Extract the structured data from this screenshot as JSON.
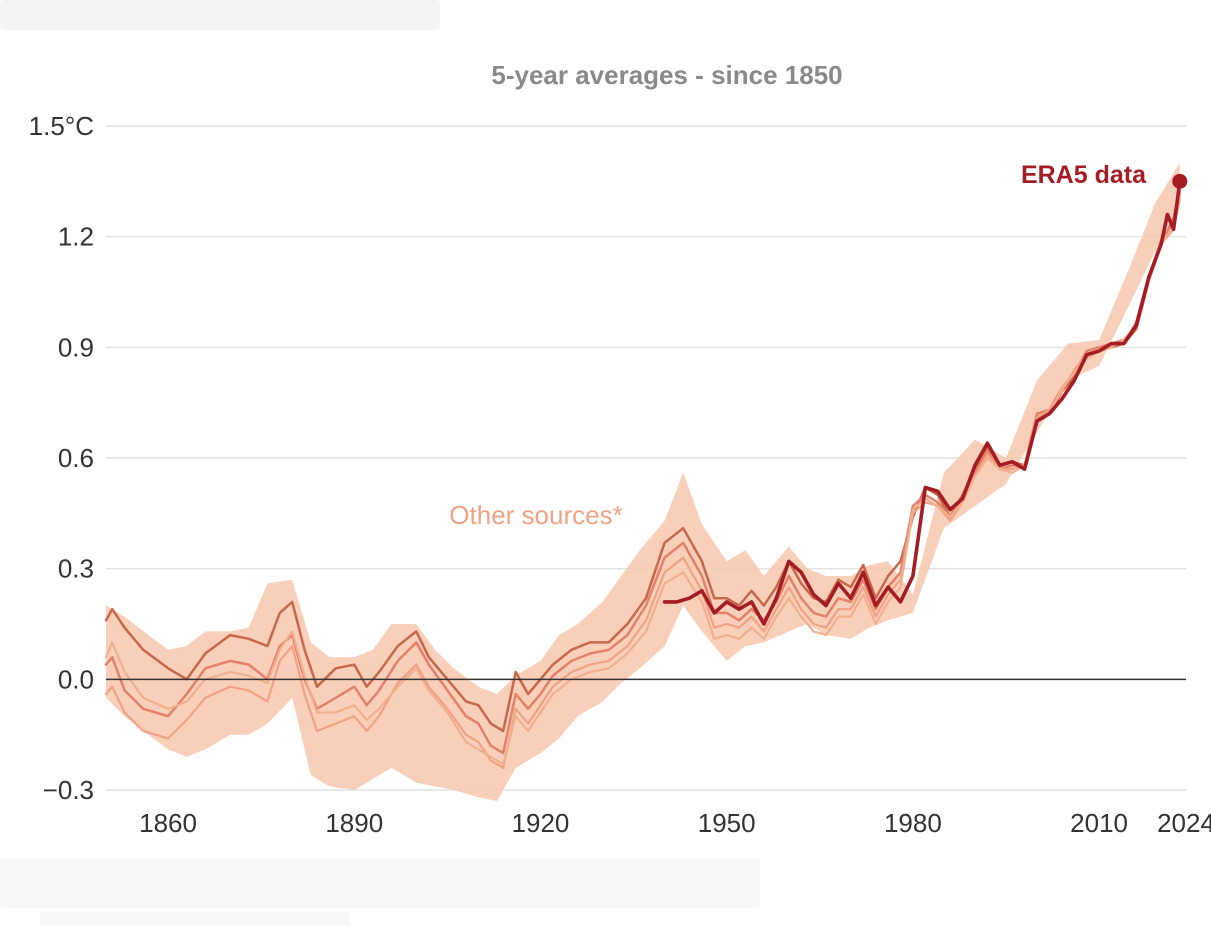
{
  "chart_data": {
    "type": "line",
    "title": "5-year averages - since 1850",
    "ylim": [
      -0.3,
      1.5
    ],
    "xlim": [
      1850,
      2024
    ],
    "yticks": [
      {
        "value": 1.5,
        "label": "1.5°C"
      },
      {
        "value": 1.2,
        "label": "1.2"
      },
      {
        "value": 0.9,
        "label": "0.9"
      },
      {
        "value": 0.6,
        "label": "0.6"
      },
      {
        "value": 0.3,
        "label": "0.3"
      },
      {
        "value": 0.0,
        "label": "0.0"
      },
      {
        "value": -0.3,
        "label": "−0.3"
      }
    ],
    "xticks": [
      {
        "value": 1860,
        "label": "1860"
      },
      {
        "value": 1890,
        "label": "1890"
      },
      {
        "value": 1920,
        "label": "1920"
      },
      {
        "value": 1950,
        "label": "1950"
      },
      {
        "value": 1980,
        "label": "1980"
      },
      {
        "value": 2010,
        "label": "2010"
      },
      {
        "value": 2024,
        "label": "2024"
      }
    ],
    "grid": true,
    "colors": {
      "era5": "#a61c24",
      "band": "#f7c7ad",
      "other_series": [
        "#c8684b",
        "#e5806a",
        "#f2a184",
        "#f0b08e"
      ],
      "zero_line": "#333333",
      "grid": "#e2e2e2"
    },
    "annotations": {
      "era5_label": "ERA5 data",
      "other_label": "Other sources*"
    },
    "band": {
      "x": [
        1850,
        1853,
        1856,
        1860,
        1863,
        1866,
        1870,
        1873,
        1876,
        1880,
        1883,
        1886,
        1890,
        1893,
        1896,
        1900,
        1903,
        1906,
        1910,
        1913,
        1916,
        1920,
        1923,
        1926,
        1930,
        1933,
        1936,
        1940,
        1943,
        1946,
        1950,
        1953,
        1956,
        1960,
        1963,
        1966,
        1970,
        1973,
        1976,
        1980,
        1985,
        1990,
        1995,
        2000,
        2005,
        2010,
        2015,
        2019,
        2023
      ],
      "upper": [
        0.2,
        0.17,
        0.13,
        0.08,
        0.09,
        0.13,
        0.13,
        0.14,
        0.26,
        0.27,
        0.1,
        0.06,
        0.06,
        0.08,
        0.15,
        0.15,
        0.08,
        0.03,
        -0.02,
        -0.04,
        0.01,
        0.05,
        0.12,
        0.15,
        0.21,
        0.28,
        0.35,
        0.43,
        0.56,
        0.42,
        0.32,
        0.35,
        0.28,
        0.36,
        0.3,
        0.28,
        0.28,
        0.31,
        0.32,
        0.23,
        0.56,
        0.65,
        0.6,
        0.81,
        0.91,
        0.92,
        1.12,
        1.29,
        1.4
      ],
      "lower": [
        -0.05,
        -0.1,
        -0.14,
        -0.19,
        -0.21,
        -0.19,
        -0.15,
        -0.15,
        -0.12,
        -0.05,
        -0.26,
        -0.29,
        -0.3,
        -0.27,
        -0.24,
        -0.28,
        -0.29,
        -0.3,
        -0.32,
        -0.33,
        -0.24,
        -0.2,
        -0.16,
        -0.1,
        -0.06,
        -0.01,
        0.03,
        0.09,
        0.2,
        0.13,
        0.05,
        0.09,
        0.1,
        0.13,
        0.15,
        0.12,
        0.11,
        0.14,
        0.16,
        0.18,
        0.41,
        0.47,
        0.53,
        0.67,
        0.81,
        0.85,
        1.02,
        1.16,
        1.29
      ]
    },
    "series": [
      {
        "x": [
          1850,
          1851,
          1853,
          1856,
          1860,
          1863,
          1866,
          1870,
          1873,
          1876,
          1878,
          1880,
          1882,
          1884,
          1887,
          1890,
          1892,
          1894,
          1897,
          1900,
          1902,
          1905,
          1908,
          1910,
          1912,
          1914,
          1916,
          1918,
          1920,
          1922,
          1925,
          1928,
          1931,
          1934,
          1937,
          1940,
          1943,
          1946,
          1948,
          1950,
          1952,
          1954,
          1956,
          1958,
          1960,
          1962,
          1964,
          1966,
          1968,
          1970,
          1972,
          1974,
          1976,
          1978,
          1980,
          1982,
          1984,
          1986,
          1988,
          1990,
          1992,
          1994,
          1996,
          1998,
          2000,
          2002,
          2004,
          2006,
          2008,
          2010,
          2012,
          2014,
          2016,
          2018,
          2020,
          2022,
          2023
        ],
        "y": [
          0.16,
          0.19,
          0.14,
          0.08,
          0.03,
          0.0,
          0.07,
          0.12,
          0.11,
          0.09,
          0.18,
          0.21,
          0.08,
          -0.02,
          0.03,
          0.04,
          -0.02,
          0.02,
          0.09,
          0.13,
          0.06,
          0.0,
          -0.06,
          -0.07,
          -0.12,
          -0.14,
          0.02,
          -0.04,
          0.0,
          0.04,
          0.08,
          0.1,
          0.1,
          0.15,
          0.22,
          0.37,
          0.41,
          0.32,
          0.22,
          0.22,
          0.2,
          0.24,
          0.2,
          0.25,
          0.32,
          0.26,
          0.22,
          0.21,
          0.27,
          0.25,
          0.31,
          0.22,
          0.28,
          0.32,
          0.44,
          0.52,
          0.5,
          0.44,
          0.5,
          0.57,
          0.63,
          0.58,
          0.59,
          0.58,
          0.71,
          0.72,
          0.78,
          0.82,
          0.88,
          0.89,
          0.9,
          0.91,
          0.95,
          1.08,
          1.18,
          1.25,
          1.33
        ]
      },
      {
        "x": [
          1850,
          1851,
          1853,
          1856,
          1860,
          1863,
          1866,
          1870,
          1873,
          1876,
          1878,
          1880,
          1882,
          1884,
          1887,
          1890,
          1892,
          1894,
          1897,
          1900,
          1902,
          1905,
          1908,
          1910,
          1912,
          1914,
          1916,
          1918,
          1920,
          1922,
          1925,
          1928,
          1931,
          1934,
          1937,
          1940,
          1943,
          1946,
          1948,
          1950,
          1952,
          1954,
          1956,
          1958,
          1960,
          1962,
          1964,
          1966,
          1968,
          1970,
          1972,
          1974,
          1976,
          1978,
          1980,
          1982,
          1984,
          1986,
          1988,
          1990,
          1992,
          1994,
          1996,
          1998,
          2000,
          2002,
          2004,
          2006,
          2008,
          2010,
          2012,
          2014,
          2016,
          2018,
          2020,
          2022,
          2023
        ],
        "y": [
          0.04,
          0.06,
          -0.03,
          -0.08,
          -0.1,
          -0.04,
          0.03,
          0.05,
          0.04,
          0.0,
          0.09,
          0.12,
          0.0,
          -0.08,
          -0.05,
          -0.02,
          -0.07,
          -0.03,
          0.05,
          0.1,
          0.04,
          -0.03,
          -0.1,
          -0.12,
          -0.18,
          -0.2,
          -0.04,
          -0.08,
          -0.04,
          0.01,
          0.05,
          0.07,
          0.08,
          0.12,
          0.2,
          0.33,
          0.37,
          0.28,
          0.18,
          0.18,
          0.16,
          0.19,
          0.16,
          0.21,
          0.28,
          0.22,
          0.18,
          0.17,
          0.22,
          0.21,
          0.27,
          0.19,
          0.25,
          0.29,
          0.47,
          0.5,
          0.48,
          0.44,
          0.49,
          0.56,
          0.62,
          0.57,
          0.58,
          0.58,
          0.72,
          0.73,
          0.79,
          0.83,
          0.89,
          0.9,
          0.91,
          0.92,
          0.96,
          1.09,
          1.19,
          1.24,
          1.32
        ]
      },
      {
        "x": [
          1850,
          1851,
          1853,
          1856,
          1860,
          1863,
          1866,
          1870,
          1873,
          1876,
          1878,
          1880,
          1882,
          1884,
          1887,
          1890,
          1892,
          1894,
          1897,
          1900,
          1902,
          1905,
          1908,
          1910,
          1912,
          1914,
          1916,
          1918,
          1920,
          1922,
          1925,
          1928,
          1931,
          1934,
          1937,
          1940,
          1943,
          1946,
          1948,
          1950,
          1952,
          1954,
          1956,
          1958,
          1960,
          1962,
          1964,
          1966,
          1968,
          1970,
          1972,
          1974,
          1976,
          1978,
          1980,
          1982,
          1984,
          1986,
          1988,
          1990,
          1992,
          1994,
          1996,
          1998,
          2000,
          2002,
          2004,
          2006,
          2008,
          2010,
          2012,
          2014,
          2016,
          2018,
          2020,
          2022,
          2023
        ],
        "y": [
          -0.04,
          -0.02,
          -0.09,
          -0.14,
          -0.16,
          -0.11,
          -0.05,
          -0.02,
          -0.03,
          -0.06,
          0.05,
          0.09,
          -0.04,
          -0.14,
          -0.12,
          -0.1,
          -0.14,
          -0.1,
          -0.01,
          0.04,
          -0.02,
          -0.08,
          -0.15,
          -0.17,
          -0.22,
          -0.24,
          -0.08,
          -0.12,
          -0.07,
          -0.02,
          0.02,
          0.04,
          0.05,
          0.09,
          0.16,
          0.29,
          0.33,
          0.24,
          0.14,
          0.15,
          0.14,
          0.17,
          0.13,
          0.19,
          0.25,
          0.19,
          0.15,
          0.14,
          0.19,
          0.19,
          0.25,
          0.17,
          0.23,
          0.27,
          0.45,
          0.48,
          0.47,
          0.43,
          0.48,
          0.55,
          0.61,
          0.57,
          0.57,
          0.58,
          0.71,
          0.73,
          0.78,
          0.84,
          0.88,
          0.89,
          0.91,
          0.91,
          0.97,
          1.09,
          1.18,
          1.22,
          1.3
        ]
      },
      {
        "x": [
          1850,
          1851,
          1853,
          1856,
          1860,
          1863,
          1866,
          1870,
          1873,
          1876,
          1878,
          1880,
          1882,
          1884,
          1887,
          1890,
          1892,
          1894,
          1897,
          1900,
          1902,
          1905,
          1908,
          1910,
          1912,
          1914,
          1916,
          1918,
          1920,
          1922,
          1925,
          1928,
          1931,
          1934,
          1937,
          1940,
          1943,
          1946,
          1948,
          1950,
          1952,
          1954,
          1956,
          1958,
          1960,
          1962,
          1964,
          1966,
          1968,
          1970,
          1972,
          1974,
          1976,
          1978,
          1980,
          1982,
          1984,
          1986,
          1988,
          1990,
          1992,
          1994,
          1996,
          1998,
          2000,
          2002,
          2004,
          2006,
          2008,
          2010,
          2012,
          2014,
          2016,
          2018,
          2020,
          2022,
          2023
        ],
        "y": [
          0.06,
          0.1,
          0.02,
          -0.05,
          -0.08,
          -0.06,
          0.0,
          0.02,
          0.01,
          -0.01,
          0.08,
          0.13,
          0.01,
          -0.09,
          -0.09,
          -0.07,
          -0.11,
          -0.08,
          -0.02,
          0.03,
          -0.03,
          -0.09,
          -0.17,
          -0.19,
          -0.21,
          -0.23,
          -0.1,
          -0.14,
          -0.09,
          -0.04,
          0.0,
          0.02,
          0.03,
          0.07,
          0.13,
          0.26,
          0.29,
          0.21,
          0.11,
          0.12,
          0.11,
          0.14,
          0.11,
          0.17,
          0.22,
          0.17,
          0.13,
          0.12,
          0.17,
          0.17,
          0.23,
          0.15,
          0.21,
          0.25,
          0.46,
          0.49,
          0.47,
          0.44,
          0.48,
          0.55,
          0.6,
          0.57,
          0.56,
          0.58,
          0.7,
          0.72,
          0.79,
          0.83,
          0.87,
          0.89,
          0.9,
          0.92,
          0.96,
          1.08,
          1.18,
          1.23,
          1.31
        ]
      },
      {
        "x": [
          1940,
          1942,
          1944,
          1946,
          1948,
          1950,
          1952,
          1954,
          1956,
          1958,
          1960,
          1962,
          1964,
          1966,
          1968,
          1970,
          1972,
          1974,
          1976,
          1978,
          1980,
          1982,
          1984,
          1986,
          1988,
          1990,
          1992,
          1994,
          1996,
          1998,
          2000,
          2002,
          2004,
          2006,
          2008,
          2010,
          2012,
          2014,
          2016,
          2018,
          2020,
          2021,
          2022,
          2023
        ],
        "y": [
          0.21,
          0.21,
          0.22,
          0.24,
          0.18,
          0.21,
          0.19,
          0.21,
          0.15,
          0.22,
          0.32,
          0.29,
          0.23,
          0.2,
          0.26,
          0.22,
          0.29,
          0.2,
          0.25,
          0.21,
          0.28,
          0.52,
          0.51,
          0.46,
          0.49,
          0.58,
          0.64,
          0.58,
          0.59,
          0.57,
          0.7,
          0.72,
          0.76,
          0.81,
          0.88,
          0.89,
          0.91,
          0.91,
          0.96,
          1.09,
          1.18,
          1.26,
          1.22,
          1.35
        ]
      }
    ]
  }
}
